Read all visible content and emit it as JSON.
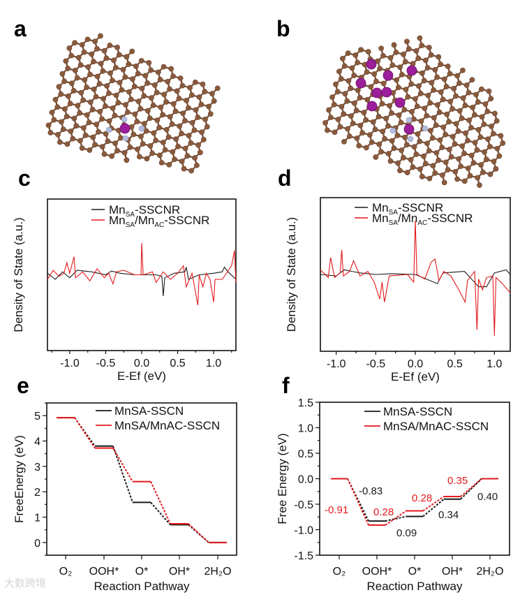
{
  "panels": {
    "a": "a",
    "b": "b",
    "c": "c",
    "d": "d",
    "e": "e",
    "f": "f"
  },
  "watermark": "大数跨境",
  "colors": {
    "black": "#1a1a1a",
    "red": "#e3191c",
    "carbon": "#8a5a3c",
    "nitrogen": "#b3bde0",
    "manganese": "#9b1e9b"
  },
  "structures": [
    {
      "panel": "a",
      "atoms": [
        "C",
        "N",
        "Mn"
      ],
      "description_label": "MnSA-SSCNR"
    },
    {
      "panel": "b",
      "atoms": [
        "C",
        "N",
        "Mn"
      ],
      "description_label": "MnSA/MnAC-SSCNR"
    }
  ],
  "chart_data": [
    {
      "panel": "c",
      "type": "line",
      "xlabel": "E-Ef (eV)",
      "ylabel": "Density of State (a.u.)",
      "xlim": [
        -1.31,
        1.31
      ],
      "ylim": [
        -5,
        5
      ],
      "xticks": [
        "-1.0",
        "-0.5",
        "0.0",
        "0.5",
        "1.0"
      ],
      "xtick_values": [
        -1,
        -0.5,
        0,
        0.5,
        1
      ],
      "legend": [
        {
          "parts": [
            "Mn",
            "SA",
            "-SSCNR"
          ],
          "color": "#1a1a1a"
        },
        {
          "parts": [
            "Mn",
            "SA",
            "/Mn",
            "AC",
            "-SSCNR"
          ],
          "color": "#e3191c"
        }
      ],
      "series": [
        {
          "name": "MnSA-SSCNR",
          "color": "#1a1a1a",
          "points": [
            [
              -1.31,
              0.1
            ],
            [
              -1.2,
              -0.3
            ],
            [
              -1.1,
              0.2
            ],
            [
              -1.0,
              -0.2
            ],
            [
              -0.9,
              0.3
            ],
            [
              -0.7,
              0.2
            ],
            [
              -0.5,
              0
            ],
            [
              -0.42,
              0.25
            ],
            [
              -0.3,
              0.1
            ],
            [
              -0.1,
              0
            ],
            [
              0.2,
              0
            ],
            [
              0.28,
              -0.1
            ],
            [
              0.3,
              -1.4
            ],
            [
              0.32,
              -0.2
            ],
            [
              0.45,
              0.1
            ],
            [
              0.6,
              0.2
            ],
            [
              0.62,
              0.5
            ],
            [
              0.65,
              -0.3
            ],
            [
              0.8,
              0
            ],
            [
              1.0,
              0.1
            ],
            [
              1.12,
              0.2
            ],
            [
              1.15,
              0.5
            ],
            [
              1.2,
              0.2
            ],
            [
              1.31,
              -0.3
            ]
          ]
        },
        {
          "name": "MnSA/MnAC-SSCNR",
          "color": "#e3191c",
          "points": [
            [
              -1.31,
              -0.3
            ],
            [
              -1.23,
              0.3
            ],
            [
              -1.15,
              -0.1
            ],
            [
              -1.08,
              0.1
            ],
            [
              -1.04,
              0.8
            ],
            [
              -1.0,
              0.1
            ],
            [
              -0.94,
              1.2
            ],
            [
              -0.92,
              -0.2
            ],
            [
              -0.82,
              0.2
            ],
            [
              -0.72,
              -0.4
            ],
            [
              -0.62,
              0.4
            ],
            [
              -0.52,
              -0.2
            ],
            [
              -0.46,
              0.1
            ],
            [
              -0.4,
              -0.6
            ],
            [
              -0.35,
              0.2
            ],
            [
              -0.25,
              0.3
            ],
            [
              -0.1,
              0
            ],
            [
              -0.01,
              0
            ],
            [
              0.0,
              2.1
            ],
            [
              0.02,
              0
            ],
            [
              0.15,
              0.2
            ],
            [
              0.2,
              -0.5
            ],
            [
              0.3,
              0.2
            ],
            [
              0.4,
              -0.3
            ],
            [
              0.5,
              0.1
            ],
            [
              0.58,
              0.6
            ],
            [
              0.62,
              -0.8
            ],
            [
              0.7,
              0.1
            ],
            [
              0.78,
              -2.0
            ],
            [
              0.8,
              0
            ],
            [
              0.85,
              -0.8
            ],
            [
              0.9,
              0.1
            ],
            [
              0.95,
              -0.3
            ],
            [
              1.0,
              -1.8
            ],
            [
              1.02,
              -0.3
            ],
            [
              1.12,
              -0.3
            ],
            [
              1.25,
              0.6
            ],
            [
              1.29,
              1.6
            ],
            [
              1.31,
              -0.5
            ]
          ]
        }
      ]
    },
    {
      "panel": "d",
      "type": "line",
      "xlabel": "E-Ef (eV)",
      "ylabel": "Density of State (a.u.)",
      "xlim": [
        -1.2,
        1.2
      ],
      "ylim": [
        -5,
        5
      ],
      "xticks": [
        "-1.0",
        "-0.5",
        "0.0",
        "0.5",
        "1.0"
      ],
      "xtick_values": [
        -1,
        -0.5,
        0,
        0.5,
        1
      ],
      "legend": [
        {
          "parts": [
            "Mn",
            "SA",
            "-SSCNR"
          ],
          "color": "#1a1a1a"
        },
        {
          "parts": [
            "Mn",
            "SA",
            "/Mn",
            "AC",
            "-SSCNR"
          ],
          "color": "#e3191c"
        }
      ],
      "series": [
        {
          "name": "MnSA-SSCNR",
          "color": "#1a1a1a",
          "points": [
            [
              -1.2,
              0
            ],
            [
              -1.0,
              -0.1
            ],
            [
              -0.9,
              0.3
            ],
            [
              -0.7,
              0.1
            ],
            [
              -0.5,
              0
            ],
            [
              -0.3,
              0.05
            ],
            [
              0.0,
              0
            ],
            [
              0.28,
              -0.6
            ],
            [
              0.35,
              0.1
            ],
            [
              0.62,
              0.2
            ],
            [
              0.8,
              -0.8
            ],
            [
              0.9,
              -0.8
            ],
            [
              1.0,
              0.1
            ],
            [
              1.15,
              0.3
            ],
            [
              1.2,
              0
            ]
          ]
        },
        {
          "name": "MnSA/MnAC-SSCNR",
          "color": "#e3191c",
          "points": [
            [
              -1.2,
              0.3
            ],
            [
              -1.1,
              -0.2
            ],
            [
              -1.07,
              1.1
            ],
            [
              -1.02,
              -0.2
            ],
            [
              -0.95,
              0.1
            ],
            [
              -0.93,
              1.6
            ],
            [
              -0.91,
              -0.1
            ],
            [
              -0.83,
              0.2
            ],
            [
              -0.78,
              0.9
            ],
            [
              -0.7,
              -0.1
            ],
            [
              -0.6,
              0.2
            ],
            [
              -0.52,
              -0.5
            ],
            [
              -0.45,
              -1.6
            ],
            [
              -0.42,
              -0.5
            ],
            [
              -0.39,
              -1.8
            ],
            [
              -0.33,
              -0.1
            ],
            [
              -0.1,
              0
            ],
            [
              -0.02,
              -0.5
            ],
            [
              0.0,
              3.5
            ],
            [
              0.02,
              0
            ],
            [
              0.12,
              -0.3
            ],
            [
              0.2,
              0.8
            ],
            [
              0.25,
              1.0
            ],
            [
              0.3,
              -0.4
            ],
            [
              0.36,
              0.2
            ],
            [
              0.45,
              -0.1
            ],
            [
              0.55,
              -1.0
            ],
            [
              0.63,
              -1.8
            ],
            [
              0.66,
              -0.4
            ],
            [
              0.75,
              0.2
            ],
            [
              0.78,
              -3.6
            ],
            [
              0.8,
              -0.3
            ],
            [
              0.85,
              -1.0
            ],
            [
              0.9,
              -0.2
            ],
            [
              0.98,
              -0.1
            ],
            [
              1.0,
              -4.0
            ],
            [
              1.02,
              -0.2
            ],
            [
              1.1,
              -0.6
            ],
            [
              1.2,
              -1.2
            ]
          ]
        }
      ]
    },
    {
      "panel": "e",
      "type": "step",
      "xlabel": "Reaction Pathway",
      "ylabel": "FreeEnergy (eV)",
      "ylim": [
        -0.5,
        5.5
      ],
      "categories": [
        "O₂",
        "OOH*",
        "O*",
        "OH*",
        "2H₂O"
      ],
      "yticks": [
        "0",
        "1",
        "2",
        "3",
        "4",
        "5"
      ],
      "ytick_values": [
        0,
        1,
        2,
        3,
        4,
        5
      ],
      "legend": [
        {
          "label": "MnSA-SSCN",
          "color": "#1a1a1a"
        },
        {
          "label": "MnSA/MnAC-SSCN",
          "color": "#e3191c"
        }
      ],
      "series": [
        {
          "name": "MnSA-SSCN",
          "color": "#1a1a1a",
          "values": [
            4.92,
            3.8,
            1.58,
            0.7,
            0
          ]
        },
        {
          "name": "MnSA/MnAC-SSCN",
          "color": "#e3191c",
          "values": [
            4.92,
            3.72,
            2.4,
            0.74,
            0
          ]
        }
      ]
    },
    {
      "panel": "f",
      "type": "step",
      "xlabel": "Reaction Pathway",
      "ylabel": "Free Energy (eV)",
      "ylim": [
        -1.5,
        1.5
      ],
      "categories": [
        "O₂",
        "OOH*",
        "O*",
        "OH*",
        "2H₂O"
      ],
      "yticks": [
        "-1.5",
        "-1.0",
        "-0.5",
        "0.0",
        "0.5",
        "1.0",
        "1.5"
      ],
      "ytick_values": [
        -1.5,
        -1,
        -0.5,
        0,
        0.5,
        1,
        1.5
      ],
      "legend": [
        {
          "label": "MnSA-SSCN",
          "color": "#1a1a1a"
        },
        {
          "label": "MnSA/MnAC-SSCN",
          "color": "#e3191c"
        }
      ],
      "series": [
        {
          "name": "MnSA-SSCN",
          "color": "#1a1a1a",
          "values": [
            0,
            -0.83,
            -0.74,
            -0.4,
            0
          ]
        },
        {
          "name": "MnSA/MnAC-SSCN",
          "color": "#e3191c",
          "values": [
            0,
            -0.91,
            -0.63,
            -0.35,
            0
          ]
        }
      ],
      "annotations": [
        {
          "text": "-0.83",
          "color": "#1a1a1a"
        },
        {
          "text": "-0.91",
          "color": "#e3191c"
        },
        {
          "text": "0.28",
          "color": "#e3191c"
        },
        {
          "text": "0.09",
          "color": "#1a1a1a"
        },
        {
          "text": "0.28",
          "color": "#e3191c"
        },
        {
          "text": "0.34",
          "color": "#1a1a1a"
        },
        {
          "text": "0.35",
          "color": "#e3191c"
        },
        {
          "text": "0.40",
          "color": "#1a1a1a"
        }
      ]
    }
  ]
}
